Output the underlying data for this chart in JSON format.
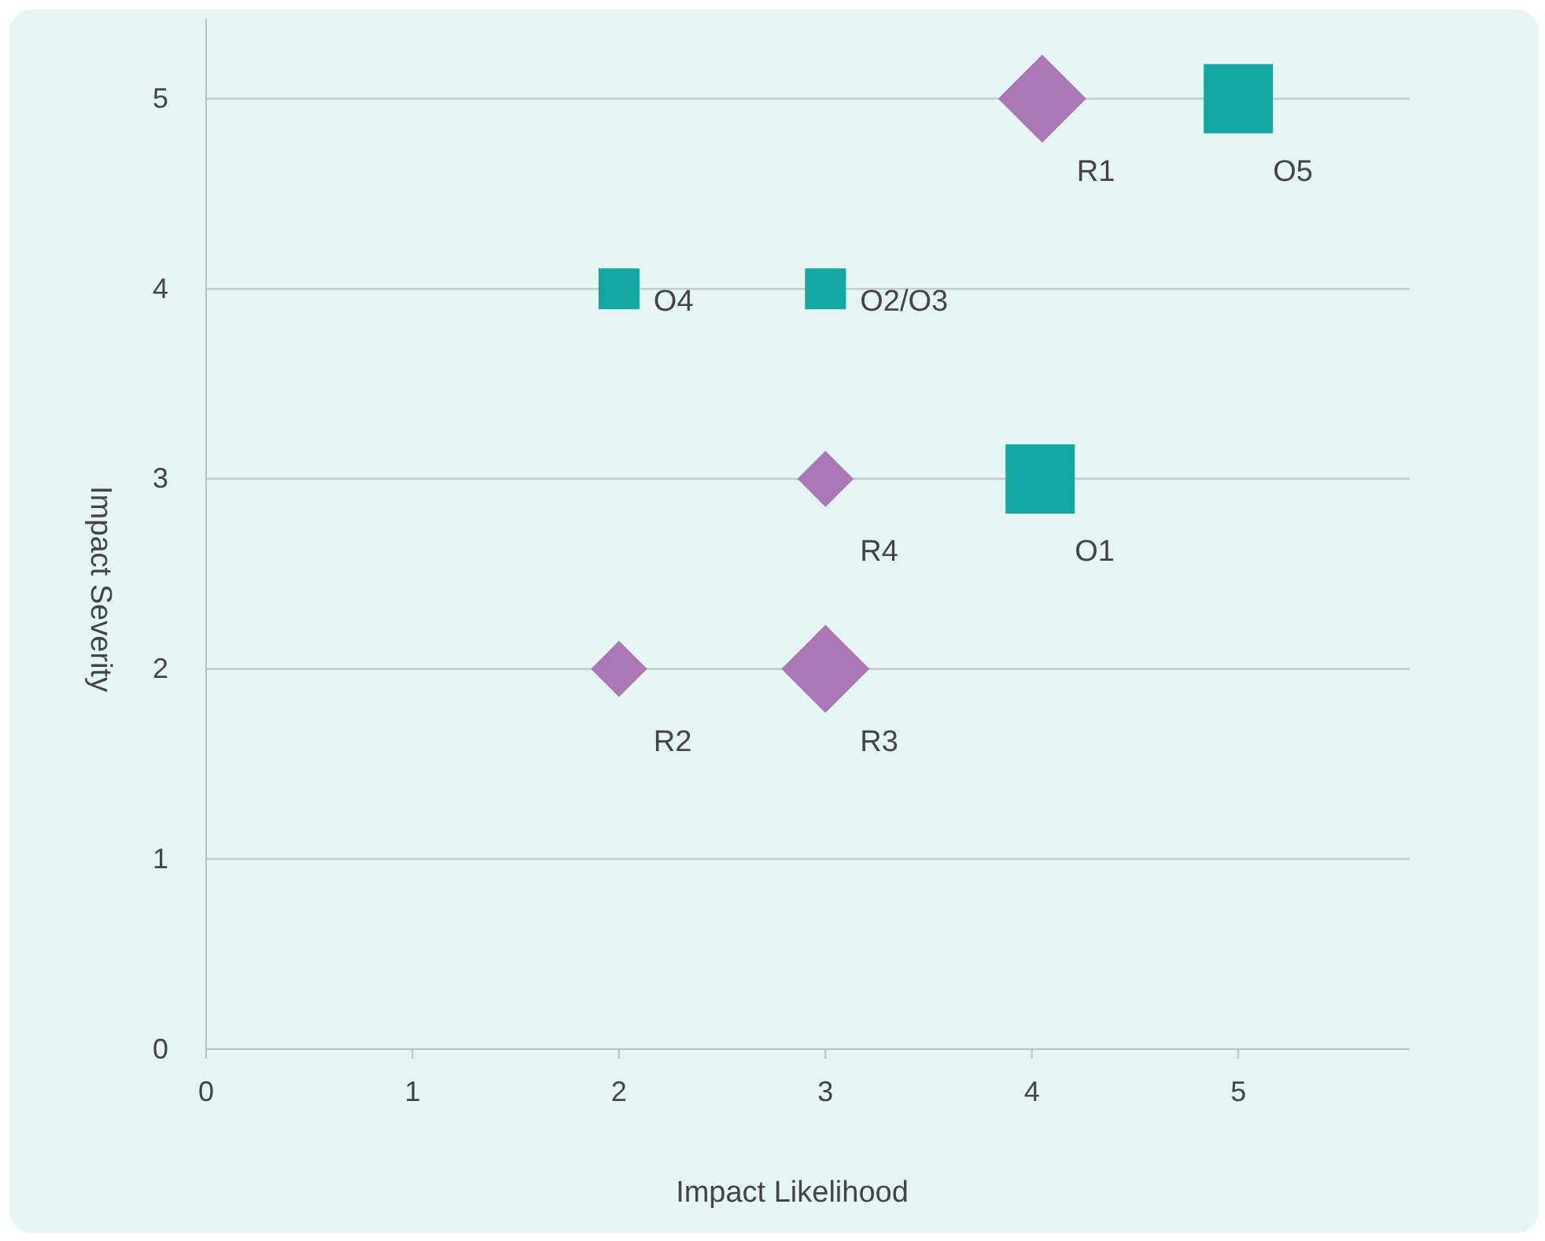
{
  "chart_data": {
    "type": "bubble",
    "xlabel": "Impact Likelihood",
    "ylabel": "Impact Severity",
    "xlim": [
      0,
      5.83
    ],
    "ylim": [
      0,
      5.42
    ],
    "xticks": [
      0,
      1,
      2,
      3,
      4,
      5
    ],
    "yticks": [
      0,
      1,
      2,
      3,
      4,
      5
    ],
    "grid": "y",
    "series": [
      {
        "color": "#13a6a3",
        "marker": "square",
        "x": [
          5,
          2,
          3,
          4.04
        ],
        "values": [
          5,
          4,
          4,
          3
        ],
        "sizes": [
          1,
          0.35,
          0.35,
          1
        ]
      },
      {
        "color": "#ab77b5",
        "marker": "diamond",
        "x": [
          4.05,
          3,
          2,
          3
        ],
        "values": [
          5,
          3,
          2,
          2
        ],
        "sizes": [
          0.81,
          0.33,
          0.33,
          0.81
        ]
      }
    ],
    "annotations": [
      {
        "text": "O5",
        "x": 5,
        "y": 5
      },
      {
        "text": "O4",
        "x": 2,
        "y": 4
      },
      {
        "text": "O2/O3",
        "x": 3,
        "y": 4
      },
      {
        "text": "O1",
        "x": 4.04,
        "y": 3
      },
      {
        "text": "R1",
        "x": 4.05,
        "y": 5
      },
      {
        "text": "R4",
        "x": 3,
        "y": 3
      },
      {
        "text": "R2",
        "x": 2,
        "y": 2
      },
      {
        "text": "R3",
        "x": 3,
        "y": 2
      }
    ]
  }
}
